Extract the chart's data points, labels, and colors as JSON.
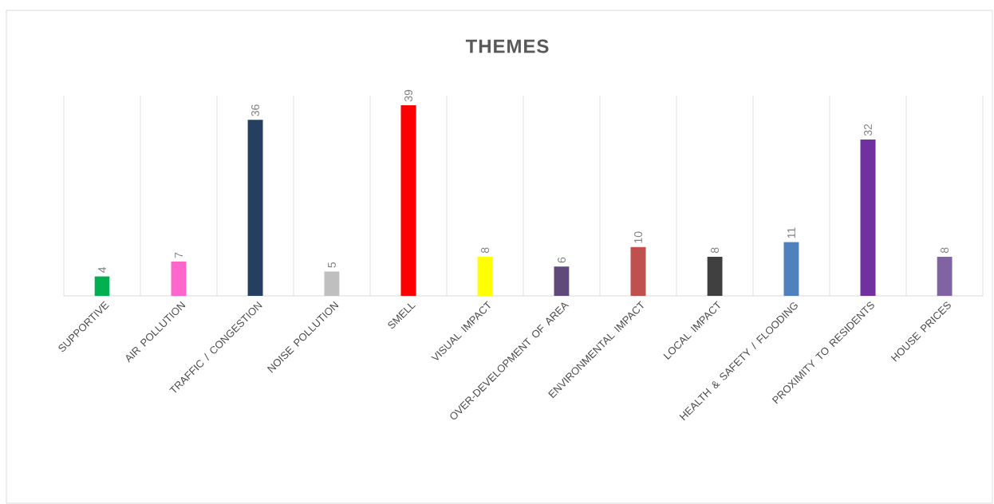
{
  "chart_data": {
    "type": "bar",
    "title": "THEMES",
    "categories": [
      "SUPPORTIVE",
      "AIR POLLUTION",
      "TRAFFIC / CONGESTION",
      "NOISE POLLUTION",
      "SMELL",
      "VISUAL IMPACT",
      "OVER-DEVELOPMENT OF AREA",
      "ENVIRONMENTAL IMPACT",
      "LOCAL IMPACT",
      "HEALTH & SAFETY / FLOODING",
      "PROXIMITY  TO RESIDENTS",
      "HOUSE PRICES"
    ],
    "values": [
      4,
      7,
      36,
      5,
      39,
      8,
      6,
      10,
      8,
      11,
      32,
      8
    ],
    "colors": [
      "#00b050",
      "#ff66cc",
      "#243f60",
      "#bfbfbf",
      "#ff0000",
      "#ffff00",
      "#604a7b",
      "#c0504d",
      "#404040",
      "#4f81bd",
      "#7030a0",
      "#8064a2"
    ],
    "data_labels": true,
    "grid": "x"
  }
}
